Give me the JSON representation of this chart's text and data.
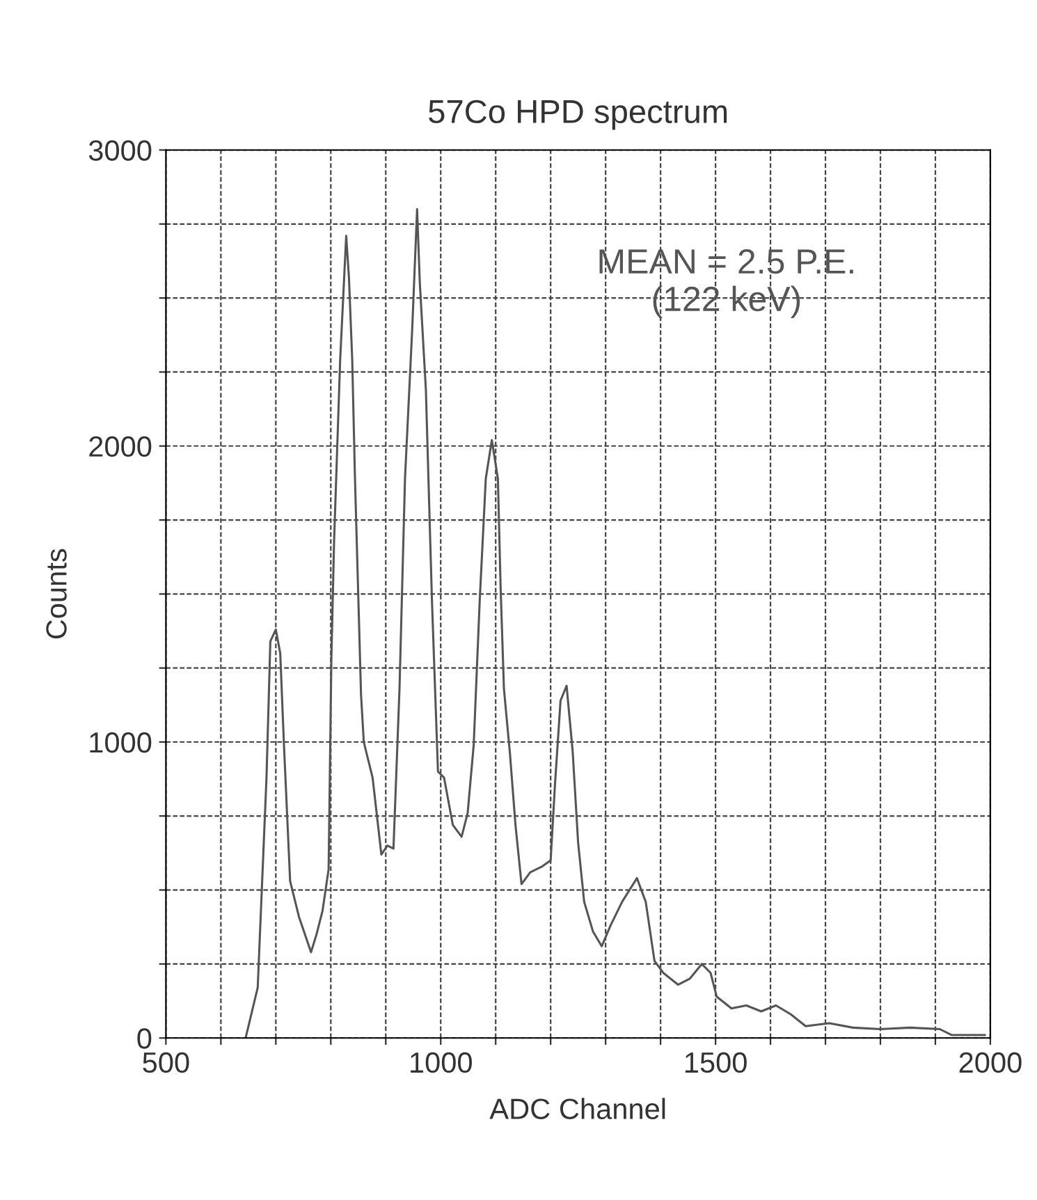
{
  "chart_data": {
    "type": "line",
    "title": "57Co HPD spectrum",
    "xlabel": "ADC Channel",
    "ylabel": "Counts",
    "annotations": [
      "MEAN = 2.5 P.E.\n(122 keV)"
    ],
    "xlim": [
      500,
      2000
    ],
    "ylim": [
      0,
      3000
    ],
    "xticks": [
      500,
      {
        "value": 600,
        "label": null
      },
      {
        "value": 700,
        "label": null
      },
      {
        "value": 800,
        "label": null
      },
      {
        "value": 900,
        "label": null
      },
      1000,
      {
        "value": 1100,
        "label": null
      },
      {
        "value": 1200,
        "label": null
      },
      {
        "value": 1300,
        "label": null
      },
      {
        "value": 1400,
        "label": null
      },
      1500,
      {
        "value": 1600,
        "label": null
      },
      {
        "value": 1700,
        "label": null
      },
      {
        "value": 1800,
        "label": null
      },
      {
        "value": 1900,
        "label": null
      },
      2000
    ],
    "yticks": [
      0,
      {
        "value": 250,
        "label": null
      },
      {
        "value": 500,
        "label": null
      },
      {
        "value": 750,
        "label": null
      },
      1000,
      {
        "value": 1250,
        "label": null
      },
      {
        "value": 1500,
        "label": null
      },
      {
        "value": 1750,
        "label": null
      },
      2000,
      {
        "value": 2250,
        "label": null
      },
      {
        "value": 2500,
        "label": null
      },
      {
        "value": 2750,
        "label": null
      },
      3000
    ],
    "grid": true,
    "marker": "none",
    "line_style": "solid",
    "series": [
      {
        "color": "#555555",
        "x": [
          645,
          667,
          683,
          690,
          700,
          708,
          715,
          726,
          742,
          764,
          774,
          785,
          796,
          801,
          806,
          817,
          828,
          833,
          839,
          844,
          855,
          860,
          876,
          892,
          903,
          914,
          925,
          935,
          948,
          957,
          962,
          973,
          984,
          995,
          1006,
          1022,
          1038,
          1049,
          1060,
          1071,
          1082,
          1093,
          1104,
          1109,
          1115,
          1126,
          1136,
          1147,
          1163,
          1185,
          1200,
          1208,
          1218,
          1229,
          1240,
          1250,
          1261,
          1277,
          1293,
          1309,
          1330,
          1357,
          1373,
          1389,
          1405,
          1432,
          1453,
          1475,
          1491,
          1502,
          1529,
          1556,
          1583,
          1610,
          1637,
          1664,
          1707,
          1750,
          1800,
          1854,
          1908,
          1930,
          1990
        ],
        "values": [
          0,
          170,
          880,
          1340,
          1380,
          1300,
          980,
          530,
          410,
          290,
          350,
          430,
          570,
          1280,
          1680,
          2290,
          2710,
          2570,
          2290,
          1890,
          1160,
          1000,
          880,
          620,
          650,
          640,
          1180,
          1890,
          2390,
          2800,
          2550,
          2190,
          1480,
          900,
          880,
          720,
          680,
          760,
          990,
          1480,
          1890,
          2020,
          1890,
          1520,
          1180,
          960,
          720,
          520,
          560,
          580,
          600,
          860,
          1140,
          1190,
          970,
          660,
          460,
          360,
          310,
          380,
          460,
          540,
          460,
          260,
          220,
          180,
          200,
          250,
          220,
          140,
          100,
          110,
          90,
          110,
          80,
          40,
          50,
          35,
          30,
          35,
          30,
          10,
          10
        ]
      }
    ]
  }
}
